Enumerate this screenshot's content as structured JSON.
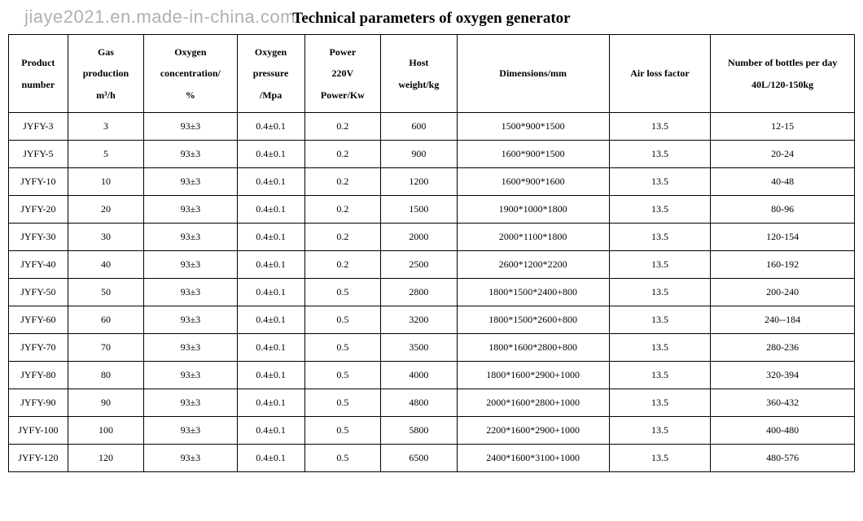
{
  "watermark": "jiaye2021.en.made-in-china.com",
  "title": "Technical parameters of oxygen generator",
  "table": {
    "type": "table",
    "background_color": "#ffffff",
    "border_color": "#000000",
    "text_color": "#000000",
    "header_fontsize": 12,
    "cell_fontsize": 12,
    "columns": [
      {
        "label_line1": "Product",
        "label_line2": "number",
        "width_pct": 7
      },
      {
        "label_line1": "Gas",
        "label_line2": "production",
        "label_line3": "m³/h",
        "width_pct": 9
      },
      {
        "label_line1": "Oxygen",
        "label_line2": "concentration/",
        "label_line3": "%",
        "width_pct": 11
      },
      {
        "label_line1": "Oxygen",
        "label_line2": "pressure",
        "label_line3": "/Mpa",
        "width_pct": 8
      },
      {
        "label_line1": "Power",
        "label_line2": "220V",
        "label_line3": "Power/Kw",
        "width_pct": 9
      },
      {
        "label_line1": "Host",
        "label_line2": "weight/kg",
        "width_pct": 9
      },
      {
        "label_line1": "Dimensions/mm",
        "width_pct": 18
      },
      {
        "label_line1": "Air loss factor",
        "width_pct": 12
      },
      {
        "label_line1": "Number of bottles per day",
        "label_line2": "40L/120-150kg",
        "width_pct": 17
      }
    ],
    "rows": [
      [
        "JYFY-3",
        "3",
        "93±3",
        "0.4±0.1",
        "0.2",
        "600",
        "1500*900*1500",
        "13.5",
        "12-15"
      ],
      [
        "JYFY-5",
        "5",
        "93±3",
        "0.4±0.1",
        "0.2",
        "900",
        "1600*900*1500",
        "13.5",
        "20-24"
      ],
      [
        "JYFY-10",
        "10",
        "93±3",
        "0.4±0.1",
        "0.2",
        "1200",
        "1600*900*1600",
        "13.5",
        "40-48"
      ],
      [
        "JYFY-20",
        "20",
        "93±3",
        "0.4±0.1",
        "0.2",
        "1500",
        "1900*1000*1800",
        "13.5",
        "80-96"
      ],
      [
        "JYFY-30",
        "30",
        "93±3",
        "0.4±0.1",
        "0.2",
        "2000",
        "2000*1100*1800",
        "13.5",
        "120-154"
      ],
      [
        "JYFY-40",
        "40",
        "93±3",
        "0.4±0.1",
        "0.2",
        "2500",
        "2600*1200*2200",
        "13.5",
        "160-192"
      ],
      [
        "JYFY-50",
        "50",
        "93±3",
        "0.4±0.1",
        "0.5",
        "2800",
        "1800*1500*2400+800",
        "13.5",
        "200-240"
      ],
      [
        "JYFY-60",
        "60",
        "93±3",
        "0.4±0.1",
        "0.5",
        "3200",
        "1800*1500*2600+800",
        "13.5",
        "240--184"
      ],
      [
        "JYFY-70",
        "70",
        "93±3",
        "0.4±0.1",
        "0.5",
        "3500",
        "1800*1600*2800+800",
        "13.5",
        "280-236"
      ],
      [
        "JYFY-80",
        "80",
        "93±3",
        "0.4±0.1",
        "0.5",
        "4000",
        "1800*1600*2900+1000",
        "13.5",
        "320-394"
      ],
      [
        "JYFY-90",
        "90",
        "93±3",
        "0.4±0.1",
        "0.5",
        "4800",
        "2000*1600*2800+1000",
        "13.5",
        "360-432"
      ],
      [
        "JYFY-100",
        "100",
        "93±3",
        "0.4±0.1",
        "0.5",
        "5800",
        "2200*1600*2900+1000",
        "13.5",
        "400-480"
      ],
      [
        "JYFY-120",
        "120",
        "93±3",
        "0.4±0.1",
        "0.5",
        "6500",
        "2400*1600*3100+1000",
        "13.5",
        "480-576"
      ]
    ]
  }
}
